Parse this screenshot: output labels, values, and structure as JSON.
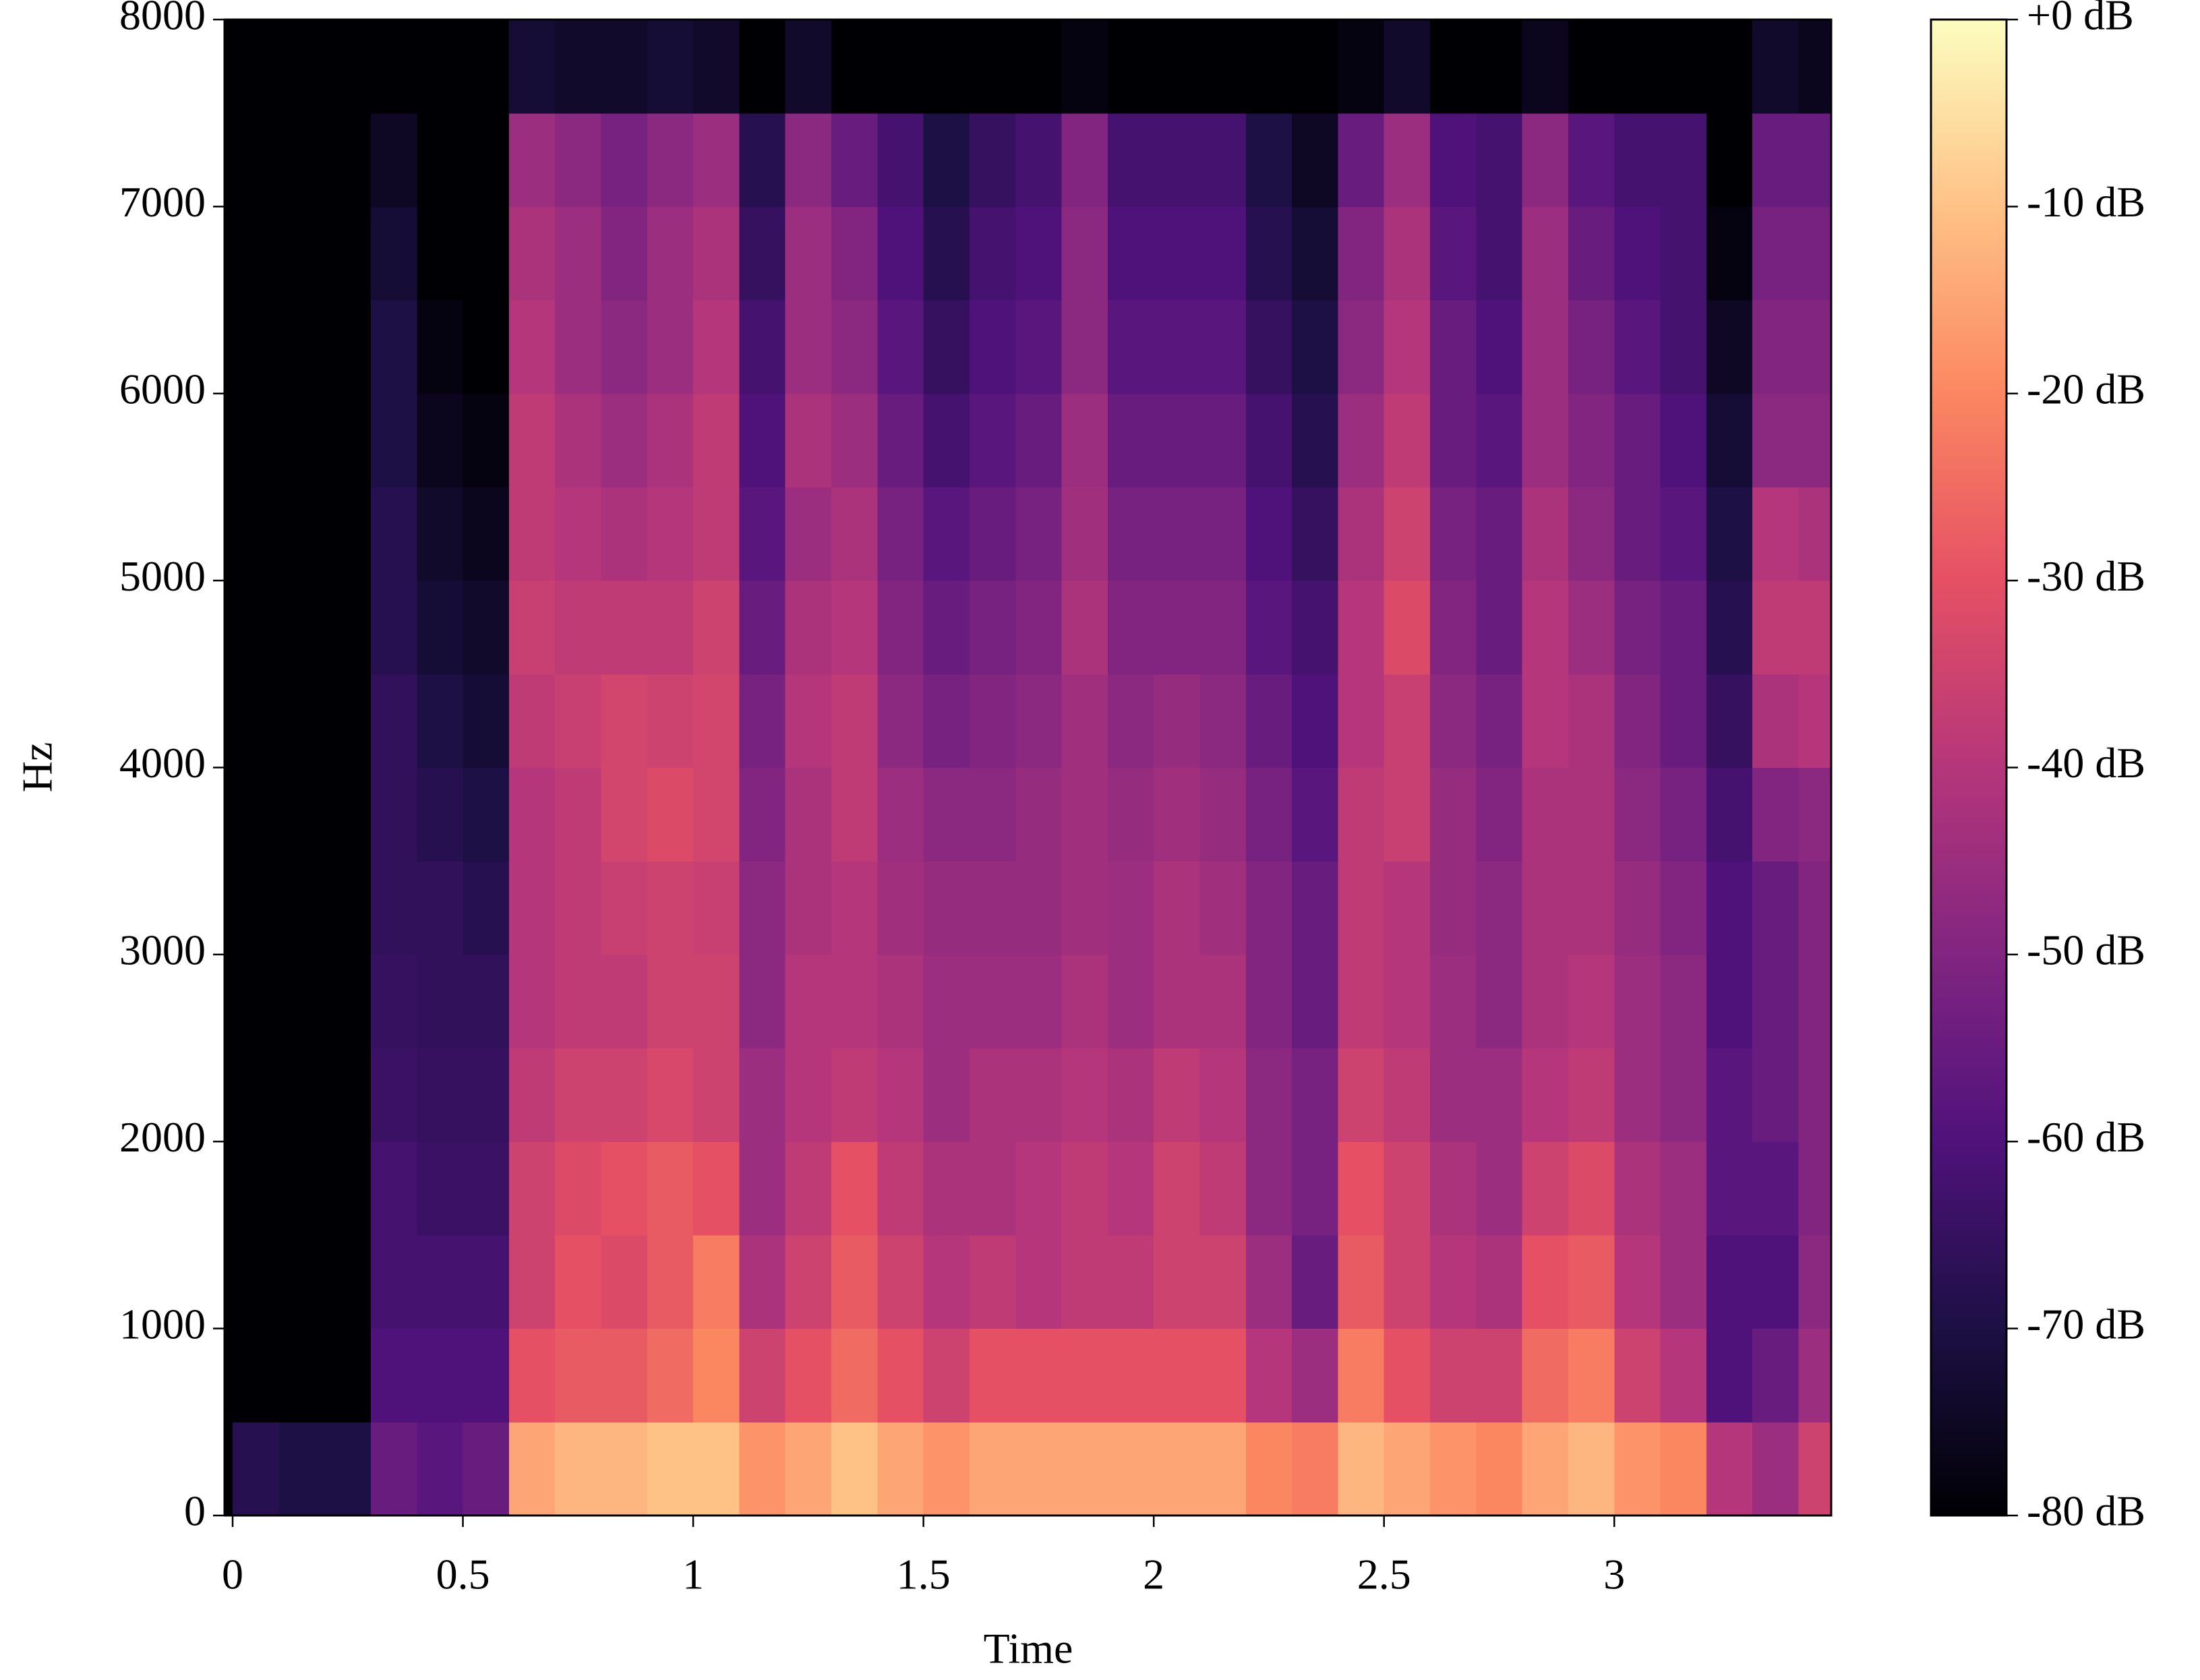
{
  "chart_data": {
    "type": "heatmap",
    "xlabel": "Time",
    "ylabel": "Hz",
    "x": [
      0,
      0.1,
      0.2,
      0.3,
      0.4,
      0.5,
      0.6,
      0.7,
      0.8,
      0.9,
      1.0,
      1.1,
      1.2,
      1.3,
      1.4,
      1.5,
      1.6,
      1.7,
      1.8,
      1.9,
      2.0,
      2.1,
      2.2,
      2.3,
      2.4,
      2.5,
      2.6,
      2.7,
      2.8,
      2.9,
      3.0,
      3.1,
      3.2,
      3.3,
      3.4,
      3.5
    ],
    "y": [
      0,
      500,
      1000,
      1500,
      2000,
      2500,
      3000,
      3500,
      4000,
      4500,
      5000,
      5500,
      6000,
      6500,
      7000,
      7500,
      8000
    ],
    "z": [
      [
        -68,
        -70,
        -70,
        -55,
        -58,
        -55,
        -15,
        -12,
        -12,
        -10,
        -10,
        -18,
        -15,
        -10,
        -15,
        -18,
        -15,
        -15,
        -15,
        -15,
        -15,
        -15,
        -20,
        -22,
        -12,
        -15,
        -18,
        -20,
        -15,
        -12,
        -18,
        -20,
        -40,
        -45,
        -35
      ],
      [
        -80,
        -80,
        -80,
        -60,
        -60,
        -60,
        -30,
        -28,
        -28,
        -25,
        -20,
        -35,
        -30,
        -25,
        -30,
        -35,
        -30,
        -30,
        -30,
        -30,
        -30,
        -30,
        -40,
        -45,
        -22,
        -30,
        -35,
        -35,
        -25,
        -22,
        -35,
        -40,
        -60,
        -55,
        -45
      ],
      [
        -80,
        -80,
        -80,
        -62,
        -62,
        -62,
        -35,
        -30,
        -32,
        -28,
        -22,
        -42,
        -35,
        -28,
        -35,
        -40,
        -38,
        -40,
        -38,
        -38,
        -35,
        -35,
        -45,
        -55,
        -28,
        -35,
        -40,
        -42,
        -30,
        -28,
        -40,
        -45,
        -60,
        -60,
        -48
      ],
      [
        -80,
        -80,
        -80,
        -62,
        -64,
        -64,
        -35,
        -32,
        -30,
        -28,
        -30,
        -45,
        -38,
        -30,
        -38,
        -42,
        -42,
        -40,
        -38,
        -40,
        -35,
        -38,
        -48,
        -52,
        -30,
        -35,
        -42,
        -45,
        -35,
        -32,
        -42,
        -45,
        -58,
        -58,
        -50
      ],
      [
        -80,
        -80,
        -80,
        -64,
        -65,
        -65,
        -38,
        -35,
        -35,
        -33,
        -35,
        -45,
        -40,
        -38,
        -40,
        -45,
        -42,
        -42,
        -40,
        -42,
        -38,
        -40,
        -48,
        -52,
        -35,
        -38,
        -45,
        -45,
        -40,
        -38,
        -45,
        -48,
        -58,
        -55,
        -50
      ],
      [
        -80,
        -80,
        -80,
        -65,
        -66,
        -66,
        -40,
        -38,
        -38,
        -35,
        -35,
        -48,
        -40,
        -40,
        -42,
        -45,
        -45,
        -45,
        -42,
        -45,
        -42,
        -42,
        -50,
        -55,
        -38,
        -40,
        -45,
        -48,
        -42,
        -40,
        -45,
        -48,
        -60,
        -55,
        -50
      ],
      [
        -80,
        -80,
        -80,
        -66,
        -66,
        -68,
        -40,
        -38,
        -36,
        -35,
        -36,
        -48,
        -42,
        -40,
        -44,
        -46,
        -46,
        -46,
        -44,
        -45,
        -42,
        -44,
        -50,
        -55,
        -38,
        -40,
        -46,
        -48,
        -42,
        -42,
        -46,
        -50,
        -60,
        -55,
        -50
      ],
      [
        -80,
        -80,
        -80,
        -66,
        -68,
        -70,
        -40,
        -38,
        -34,
        -32,
        -34,
        -50,
        -42,
        -38,
        -45,
        -48,
        -48,
        -46,
        -44,
        -46,
        -44,
        -46,
        -52,
        -58,
        -38,
        -36,
        -46,
        -50,
        -42,
        -42,
        -48,
        -52,
        -62,
        -50,
        -48
      ],
      [
        -80,
        -80,
        -80,
        -66,
        -70,
        -72,
        -38,
        -36,
        -34,
        -35,
        -34,
        -52,
        -40,
        -38,
        -48,
        -52,
        -50,
        -48,
        -44,
        -48,
        -46,
        -48,
        -55,
        -60,
        -40,
        -36,
        -48,
        -52,
        -40,
        -42,
        -50,
        -55,
        -65,
        -42,
        -40
      ],
      [
        -80,
        -80,
        -80,
        -68,
        -72,
        -74,
        -36,
        -38,
        -38,
        -38,
        -35,
        -55,
        -42,
        -40,
        -50,
        -55,
        -52,
        -50,
        -42,
        -50,
        -50,
        -50,
        -58,
        -62,
        -40,
        -32,
        -50,
        -55,
        -40,
        -45,
        -52,
        -55,
        -68,
        -38,
        -38
      ],
      [
        -80,
        -80,
        -80,
        -68,
        -74,
        -76,
        -38,
        -40,
        -42,
        -40,
        -38,
        -58,
        -45,
        -42,
        -52,
        -58,
        -55,
        -52,
        -44,
        -52,
        -52,
        -52,
        -60,
        -65,
        -42,
        -35,
        -52,
        -55,
        -42,
        -48,
        -55,
        -58,
        -70,
        -40,
        -42
      ],
      [
        -80,
        -80,
        -80,
        -70,
        -76,
        -78,
        -38,
        -42,
        -45,
        -42,
        -38,
        -60,
        -42,
        -45,
        -55,
        -62,
        -58,
        -55,
        -45,
        -55,
        -55,
        -55,
        -62,
        -68,
        -45,
        -38,
        -55,
        -58,
        -45,
        -50,
        -55,
        -60,
        -72,
        -48,
        -48
      ],
      [
        -80,
        -80,
        -80,
        -70,
        -78,
        -80,
        -40,
        -45,
        -48,
        -45,
        -40,
        -62,
        -45,
        -48,
        -58,
        -65,
        -60,
        -58,
        -48,
        -58,
        -58,
        -58,
        -65,
        -70,
        -48,
        -40,
        -55,
        -60,
        -45,
        -52,
        -58,
        -62,
        -75,
        -50,
        -50
      ],
      [
        -80,
        -80,
        -80,
        -72,
        -80,
        -80,
        -42,
        -45,
        -50,
        -45,
        -42,
        -65,
        -45,
        -50,
        -60,
        -68,
        -62,
        -60,
        -48,
        -60,
        -60,
        -60,
        -68,
        -72,
        -50,
        -42,
        -58,
        -62,
        -45,
        -55,
        -60,
        -62,
        -78,
        -52,
        -52
      ],
      [
        -80,
        -80,
        -80,
        -75,
        -80,
        -80,
        -45,
        -48,
        -52,
        -48,
        -45,
        -68,
        -48,
        -55,
        -62,
        -70,
        -65,
        -62,
        -50,
        -62,
        -62,
        -62,
        -70,
        -75,
        -55,
        -45,
        -60,
        -62,
        -48,
        -58,
        -62,
        -62,
        -80,
        -55,
        -55
      ],
      [
        -80,
        -80,
        -80,
        -80,
        -80,
        -80,
        -72,
        -74,
        -74,
        -72,
        -74,
        -80,
        -74,
        -80,
        -80,
        -80,
        -80,
        -80,
        -78,
        -80,
        -80,
        -80,
        -80,
        -80,
        -78,
        -74,
        -80,
        -80,
        -76,
        -80,
        -80,
        -80,
        -80,
        -74,
        -76
      ]
    ],
    "xlim": [
      -0.0176,
      3.471
    ],
    "ylim": [
      0,
      8000
    ],
    "xticks": [
      0,
      0.5,
      1,
      1.5,
      2,
      2.5,
      3
    ],
    "yticks": [
      0,
      1000,
      2000,
      3000,
      4000,
      5000,
      6000,
      7000,
      8000
    ],
    "zlim": [
      -80,
      0
    ],
    "colorbar_ticks": [
      {
        "value": 0,
        "label": "+0 dB"
      },
      {
        "value": -10,
        "label": "-10 dB"
      },
      {
        "value": -20,
        "label": "-20 dB"
      },
      {
        "value": -30,
        "label": "-30 dB"
      },
      {
        "value": -40,
        "label": "-40 dB"
      },
      {
        "value": -50,
        "label": "-50 dB"
      },
      {
        "value": -60,
        "label": "-60 dB"
      },
      {
        "value": -70,
        "label": "-70 dB"
      },
      {
        "value": -80,
        "label": "-80 dB"
      }
    ],
    "colormap": [
      "#000004",
      "#1c1044",
      "#4f127b",
      "#812581",
      "#b5367a",
      "#e55064",
      "#fb8761",
      "#fec287",
      "#fcfdbf"
    ]
  }
}
